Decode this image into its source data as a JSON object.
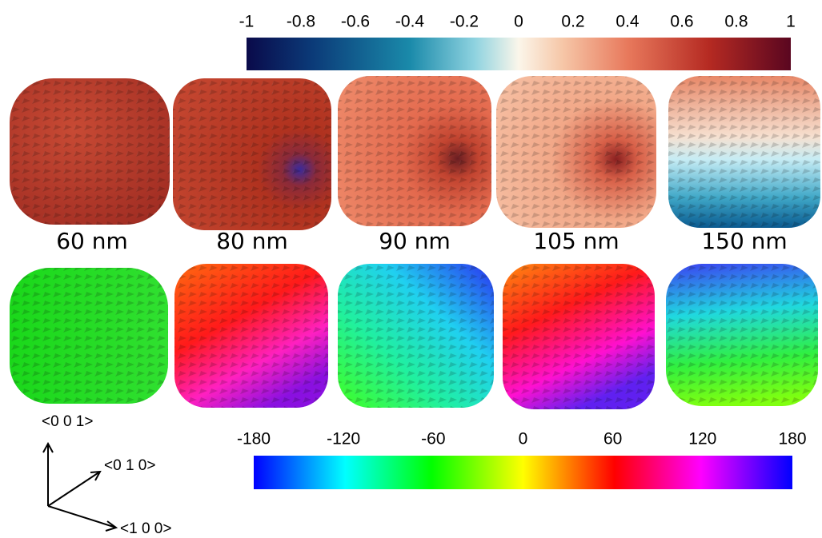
{
  "top_colorbar": {
    "lim": [
      -1,
      1
    ],
    "ticks": [
      -1,
      -0.8,
      -0.6,
      -0.4,
      -0.2,
      0,
      0.2,
      0.4,
      0.6,
      0.8,
      1
    ]
  },
  "sizes": [
    "60 nm",
    "80 nm",
    "90 nm",
    "105 nm",
    "150 nm"
  ],
  "bottom_colorbar": {
    "lim": [
      -180,
      180
    ],
    "ticks": [
      -180,
      -120,
      -60,
      0,
      60,
      120,
      180
    ]
  },
  "axes": {
    "z": "<0 0 1>",
    "y": "<0 1 0>",
    "x": "<1 0 0>"
  }
}
